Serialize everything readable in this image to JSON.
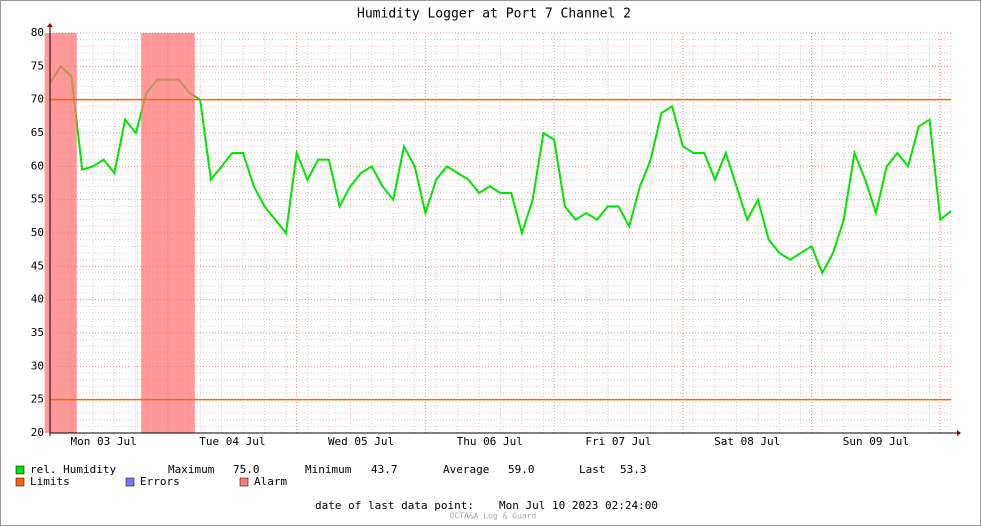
{
  "chart_data": {
    "type": "line",
    "title": "Humidity Logger at Port 7 Channel 2",
    "categories": [
      null,
      null,
      null,
      null,
      null,
      "Mon 03 Jul",
      null,
      null,
      null,
      null,
      null,
      null,
      null,
      null,
      null,
      null,
      null,
      "Tue 04 Jul",
      null,
      null,
      null,
      null,
      null,
      null,
      null,
      null,
      null,
      null,
      null,
      "Wed 05 Jul",
      null,
      null,
      null,
      null,
      null,
      null,
      null,
      null,
      null,
      null,
      null,
      "Thu 06 Jul",
      null,
      null,
      null,
      null,
      null,
      null,
      null,
      null,
      null,
      null,
      null,
      "Fri 07 Jul",
      null,
      null,
      null,
      null,
      null,
      null,
      null,
      null,
      null,
      null,
      null,
      "Sat 08 Jul",
      null,
      null,
      null,
      null,
      null,
      null,
      null,
      null,
      null,
      null,
      null,
      "Sun 09 Jul",
      null,
      null,
      null,
      null,
      null,
      null,
      null
    ],
    "series": [
      {
        "name": "rel. Humidity",
        "color": "#00e600",
        "values": [
          72.5,
          75,
          73.5,
          59.5,
          60,
          61,
          59,
          67,
          65,
          71,
          73,
          73,
          73,
          71,
          70,
          58,
          60,
          62,
          62,
          57,
          54,
          52,
          50,
          62,
          58,
          61,
          61,
          54,
          57,
          59,
          60,
          57,
          55,
          63,
          60,
          53,
          58,
          60,
          59,
          58,
          56,
          57,
          56,
          56,
          50,
          55,
          65,
          64,
          54,
          52,
          53,
          52,
          54,
          54,
          51,
          57,
          61,
          68,
          69,
          63,
          62,
          62,
          58,
          62,
          57,
          52,
          55,
          49,
          47,
          46,
          47,
          48,
          44,
          47,
          52,
          62,
          58,
          53,
          60,
          62,
          60,
          66,
          67,
          52,
          53.3
        ]
      }
    ],
    "limits": {
      "name": "Limits",
      "color": "#ff6600",
      "values": [
        70,
        25
      ]
    },
    "errors": {
      "name": "Errors",
      "color": "#7777ff"
    },
    "alarm": {
      "name": "Alarm",
      "color": "#ff7777"
    },
    "ylim": [
      20,
      80
    ],
    "yticks": [
      20,
      25,
      30,
      35,
      40,
      45,
      50,
      55,
      60,
      65,
      70,
      75,
      80
    ],
    "grid": true,
    "stats": [
      {
        "name": "Maximum",
        "value": 75,
        "label": "75.0"
      },
      {
        "name": "Minimum",
        "value": 43.7,
        "label": "43.7"
      },
      {
        "name": "Average",
        "value": 59,
        "label": "59.0"
      },
      {
        "name": "Last",
        "value": 53.3,
        "label": "53.3"
      }
    ],
    "footer": {
      "caption": "date of last data point:",
      "date": "Mon Jul 10 2023 02:24:00"
    },
    "credit": "OCTA&A Log & Guard"
  }
}
